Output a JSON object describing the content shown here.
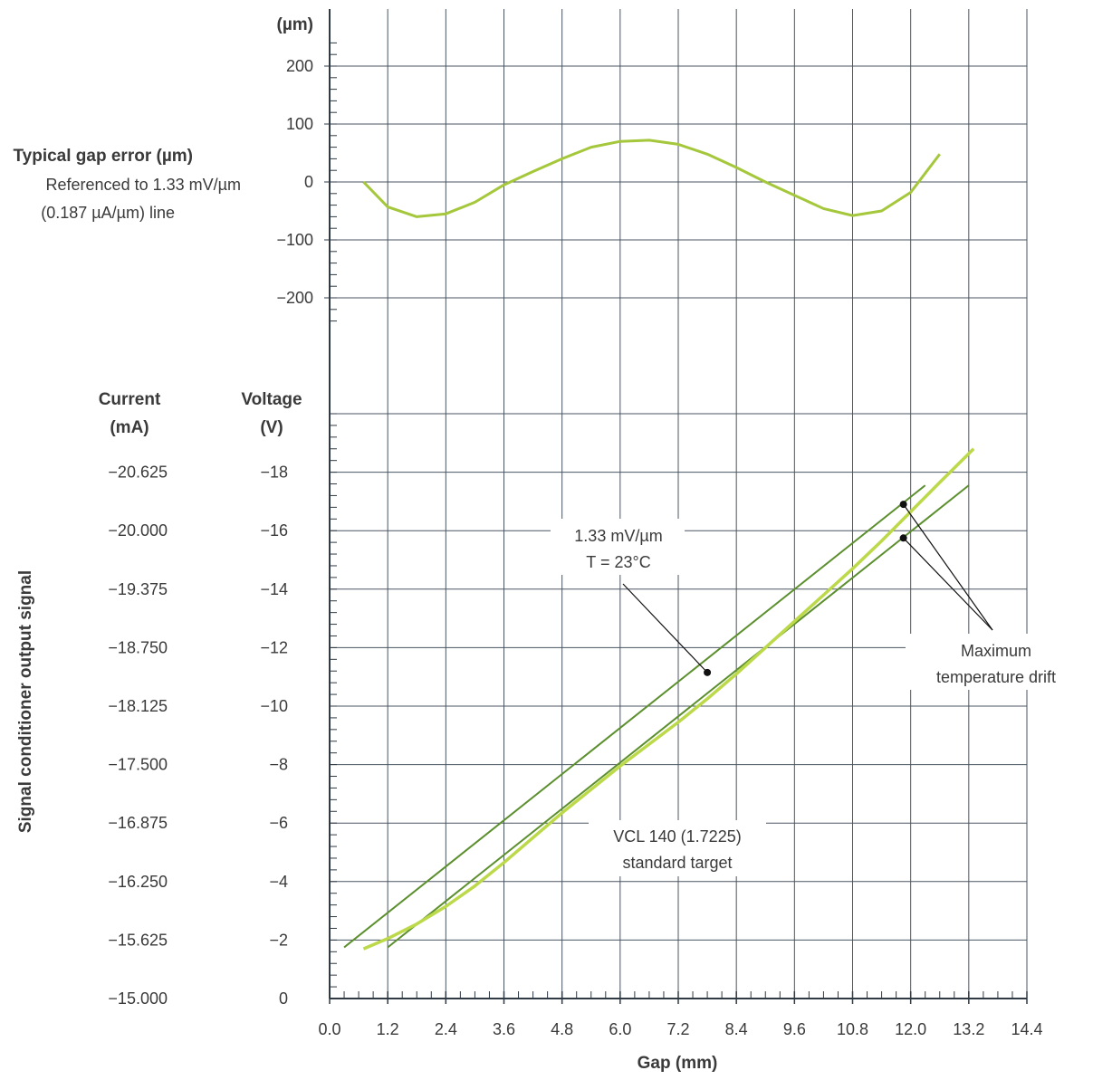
{
  "chart_data": [
    {
      "type": "line",
      "title": "",
      "ylabel": "(µm)",
      "legend_title": "Typical gap error (µm)",
      "legend_text_1": "Referenced to 1.33 mV/µm",
      "legend_text_2": "(0.187 µA/µm) line",
      "yticks": [
        200,
        100,
        0,
        -100,
        -200
      ],
      "ytick_labels": [
        "200",
        "100",
        "0",
        "−100",
        "−200"
      ],
      "ylim": [
        -250,
        250
      ],
      "xlim": [
        0,
        14.4
      ],
      "series": [
        {
          "x": [
            0.7,
            1.2,
            1.8,
            2.4,
            3.0,
            3.6,
            4.2,
            4.8,
            5.4,
            6.0,
            6.6,
            7.2,
            7.8,
            8.4,
            9.0,
            9.6,
            10.2,
            10.8,
            11.4,
            12.0,
            12.6
          ],
          "y": [
            0,
            -43,
            -60,
            -55,
            -35,
            -5,
            18,
            40,
            60,
            70,
            72,
            65,
            48,
            25,
            0,
            -23,
            -46,
            -58,
            -50,
            -18,
            48
          ],
          "color": "#a5c73b"
        }
      ]
    },
    {
      "type": "line",
      "title": "",
      "xlabel": "Gap (mm)",
      "ylabel": "Signal conditioner output signal",
      "current_header_1": "Current",
      "current_header_2": "(mA)",
      "voltage_header_1": "Voltage",
      "voltage_header_2": "(V)",
      "xticks": [
        0.0,
        1.2,
        2.4,
        3.6,
        4.8,
        6.0,
        7.2,
        8.4,
        9.6,
        10.8,
        12.0,
        13.2,
        14.4
      ],
      "xtick_labels": [
        "0.0",
        "1.2",
        "2.4",
        "3.6",
        "4.8",
        "6.0",
        "7.2",
        "8.4",
        "9.6",
        "10.8",
        "12.0",
        "13.2",
        "14.4"
      ],
      "voltage_ticks": [
        0,
        -2,
        -4,
        -6,
        -8,
        -10,
        -12,
        -14,
        -16,
        -18
      ],
      "voltage_tick_labels": [
        "0",
        "−2",
        "−4",
        "−6",
        "−8",
        "−10",
        "−12",
        "−14",
        "−16",
        "−18"
      ],
      "current_tick_labels": [
        "−15.000",
        "−15.625",
        "−16.250",
        "−16.875",
        "−17.500",
        "−18.125",
        "−18.750",
        "−19.375",
        "−20.000",
        "−20.625"
      ],
      "ylim": [
        0,
        -20
      ],
      "xlim": [
        0,
        14.4
      ],
      "series": [
        {
          "name": "Maximum temperature drift (upper)",
          "x": [
            0.3,
            12.3
          ],
          "y": [
            -1.75,
            -17.55
          ],
          "color": "#5c8f2e"
        },
        {
          "name": "Maximum temperature drift (lower)",
          "x": [
            1.2,
            13.2
          ],
          "y": [
            -1.75,
            -17.55
          ],
          "color": "#5c8f2e"
        },
        {
          "name": "VCL 140 (1.7225) standard target",
          "x": [
            0.7,
            1.2,
            1.8,
            2.4,
            3.0,
            3.6,
            4.2,
            4.8,
            5.4,
            6.0,
            6.6,
            7.2,
            7.8,
            8.4,
            9.0,
            9.6,
            10.2,
            10.8,
            11.4,
            12.0,
            12.6,
            13.3
          ],
          "y": [
            -1.7,
            -2.05,
            -2.55,
            -3.15,
            -3.85,
            -4.65,
            -5.5,
            -6.35,
            -7.15,
            -7.95,
            -8.7,
            -9.45,
            -10.25,
            -11.1,
            -12.0,
            -12.9,
            -13.8,
            -14.7,
            -15.65,
            -16.65,
            -17.65,
            -18.8
          ],
          "color": "#bcd94a"
        }
      ],
      "annotations": [
        {
          "text_1": "1.33 mV/µm",
          "text_2": "T = 23°C",
          "x": 7.8,
          "y": -11.15
        },
        {
          "text_1": "Maximum",
          "text_2": "temperature drift",
          "points": [
            [
              11.85,
              -16.9
            ],
            [
              11.85,
              -15.75
            ]
          ]
        },
        {
          "text_1": "VCL 140 (1.7225)",
          "text_2": "standard target"
        }
      ]
    }
  ]
}
